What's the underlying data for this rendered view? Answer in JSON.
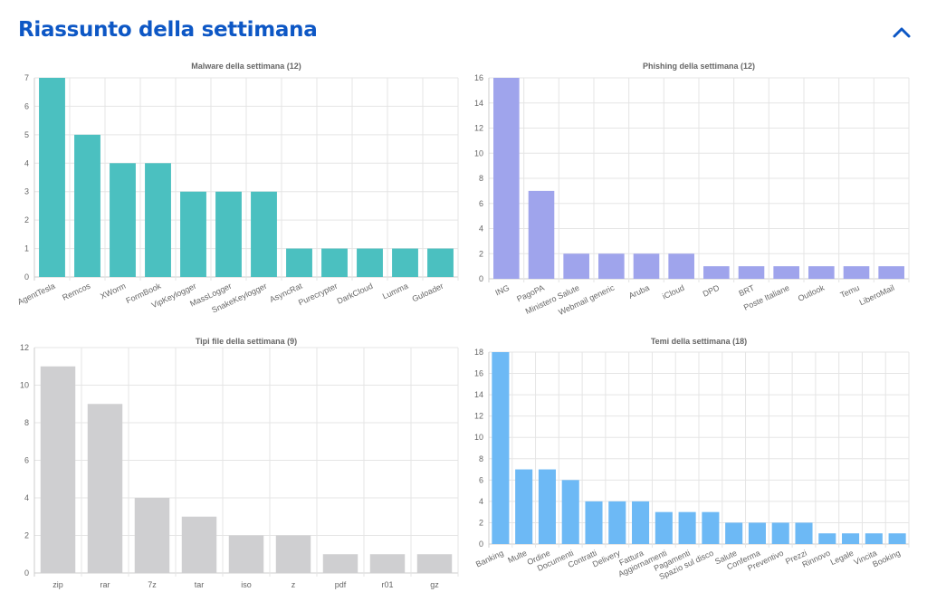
{
  "page": {
    "title": "Riassunto della settimana",
    "collapse_icon": "chevron-up-icon",
    "accent_color": "#0d57c5"
  },
  "chart_data": [
    {
      "type": "bar",
      "title": "Malware della settimana (12)",
      "categories": [
        "AgentTesla",
        "Remcos",
        "XWorm",
        "FormBook",
        "VipKeylogger",
        "MassLogger",
        "SnakeKeylogger",
        "AsyncRat",
        "Purecrypter",
        "DarkCloud",
        "Lumma",
        "Guloader"
      ],
      "values": [
        7,
        5,
        4,
        4,
        3,
        3,
        3,
        1,
        1,
        1,
        1,
        1
      ],
      "yticks": [
        "0",
        "1",
        "2",
        "3",
        "4",
        "5",
        "6",
        "7"
      ],
      "ylim": [
        0,
        7
      ],
      "color": "#4bc0c0",
      "grid": true,
      "rotated_labels": true
    },
    {
      "type": "bar",
      "title": "Phishing della settimana (12)",
      "categories": [
        "ING",
        "PagoPA",
        "Ministero Salute",
        "Webmail generic",
        "Aruba",
        "iCloud",
        "DPD",
        "BRT",
        "Poste Italiane",
        "Outlook",
        "Temu",
        "LiberoMail"
      ],
      "values": [
        16,
        7,
        2,
        2,
        2,
        2,
        1,
        1,
        1,
        1,
        1,
        1
      ],
      "yticks": [
        "0",
        "2",
        "4",
        "6",
        "8",
        "10",
        "12",
        "14",
        "16"
      ],
      "ylim": [
        0,
        16
      ],
      "color": "#9fa4ec",
      "grid": true,
      "rotated_labels": true
    },
    {
      "type": "bar",
      "title": "Tipi file della settimana (9)",
      "categories": [
        "zip",
        "rar",
        "7z",
        "tar",
        "iso",
        "z",
        "pdf",
        "r01",
        "gz"
      ],
      "values": [
        11,
        9,
        4,
        3,
        2,
        2,
        1,
        1,
        1
      ],
      "yticks": [
        "0",
        "2",
        "4",
        "6",
        "8",
        "10",
        "12"
      ],
      "ylim": [
        0,
        12
      ],
      "color": "#cfcfd1",
      "grid": true,
      "rotated_labels": false
    },
    {
      "type": "bar",
      "title": "Temi della settimana (18)",
      "categories": [
        "Banking",
        "Multe",
        "Ordine",
        "Documenti",
        "Contratti",
        "Delivery",
        "Fattura",
        "Aggiornamenti",
        "Pagamenti",
        "Spazio sul disco",
        "Salute",
        "Conferma",
        "Preventivo",
        "Prezzi",
        "Rinnovo",
        "Legale",
        "Vincita",
        "Booking"
      ],
      "values": [
        18,
        7,
        7,
        6,
        4,
        4,
        4,
        3,
        3,
        3,
        2,
        2,
        2,
        2,
        1,
        1,
        1,
        1
      ],
      "yticks": [
        "0",
        "2",
        "4",
        "6",
        "8",
        "10",
        "12",
        "14",
        "16",
        "18"
      ],
      "ylim": [
        0,
        18
      ],
      "color": "#6db9f5",
      "grid": true,
      "rotated_labels": true
    }
  ]
}
